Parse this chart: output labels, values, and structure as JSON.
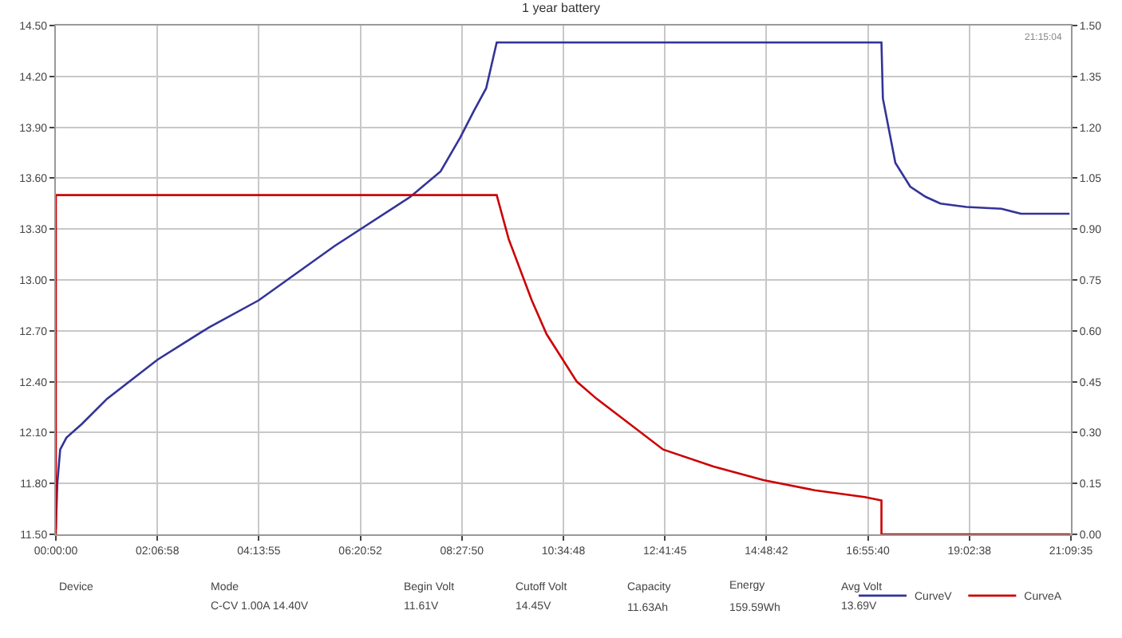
{
  "chart_data": {
    "type": "line",
    "title": "1 year battery",
    "x": [
      0,
      0.03,
      0.09,
      0.22,
      0.54,
      1.07,
      2.12,
      3.19,
      4.23,
      5.81,
      7.39,
      8.02,
      8.43,
      8.72,
      8.97,
      9.19,
      17.21,
      17.24,
      17.5,
      17.81,
      18.13,
      18.44,
      18.98,
      19.71,
      20.12,
      21.13
    ],
    "series": [
      {
        "name": "CurveV",
        "color": "#333399",
        "values": [
          11.53,
          11.8,
          12.0,
          12.07,
          12.15,
          12.3,
          12.53,
          12.72,
          12.88,
          13.2,
          13.49,
          13.64,
          13.84,
          14.0,
          14.13,
          14.4,
          14.4,
          14.07,
          13.69,
          13.55,
          13.49,
          13.45,
          13.43,
          13.42,
          13.39,
          13.39
        ]
      },
      {
        "name": "CurveA",
        "color": "#cc0000",
        "axis": "y2",
        "x": [
          0,
          0,
          9.19,
          9.44,
          9.92,
          10.23,
          10.86,
          11.27,
          12.66,
          13.71,
          14.75,
          15.82,
          16.86,
          17.21,
          17.21,
          21.15
        ],
        "values": [
          0,
          1.0,
          1.0,
          0.87,
          0.69,
          0.59,
          0.45,
          0.4,
          0.25,
          0.2,
          0.16,
          0.13,
          0.11,
          0.1,
          0,
          0
        ]
      }
    ],
    "xlim": [
      0,
      21.15972
    ],
    "xticks": [
      {
        "value": 0,
        "label": "00:00:00"
      },
      {
        "value": 2.11611,
        "label": "02:06:58"
      },
      {
        "value": 4.23194,
        "label": "04:13:55"
      },
      {
        "value": 6.34778,
        "label": "06:20:52"
      },
      {
        "value": 8.46389,
        "label": "08:27:50"
      },
      {
        "value": 10.58,
        "label": "10:34:48"
      },
      {
        "value": 12.69583,
        "label": "12:41:45"
      },
      {
        "value": 14.81167,
        "label": "14:48:42"
      },
      {
        "value": 16.92778,
        "label": "16:55:40"
      },
      {
        "value": 19.04389,
        "label": "19:02:38"
      },
      {
        "value": 21.15972,
        "label": "21:09:35"
      }
    ],
    "ylim": [
      11.5,
      14.5
    ],
    "yticks": [
      {
        "value": 11.5,
        "label": "11.50"
      },
      {
        "value": 11.8,
        "label": "11.80"
      },
      {
        "value": 12.1,
        "label": "12.10"
      },
      {
        "value": 12.4,
        "label": "12.40"
      },
      {
        "value": 12.7,
        "label": "12.70"
      },
      {
        "value": 13.0,
        "label": "13.00"
      },
      {
        "value": 13.3,
        "label": "13.30"
      },
      {
        "value": 13.6,
        "label": "13.60"
      },
      {
        "value": 13.9,
        "label": "13.90"
      },
      {
        "value": 14.2,
        "label": "14.20"
      },
      {
        "value": 14.5,
        "label": "14.50"
      }
    ],
    "y2lim": [
      0,
      1.5
    ],
    "y2ticks": [
      {
        "value": 0,
        "label": "0.00"
      },
      0.15,
      {
        "value": 0.3,
        "label": "0.30"
      },
      0.45,
      {
        "value": 0.6,
        "label": "0.60"
      },
      0.75,
      {
        "value": 0.9,
        "label": "0.90"
      },
      1.05,
      {
        "value": 1.2,
        "label": "1.20"
      },
      1.35,
      {
        "value": 1.5,
        "label": "1.50"
      }
    ],
    "grid": true,
    "legend": "bottom right",
    "marker": "none",
    "line_style": "solid",
    "annotations": [
      "21:15:04",
      "Device",
      "Mode",
      "Begin Volt",
      "Cutoff Volt",
      "Capacity",
      "Energy",
      "Avg Volt",
      "C-CV 1.00A 14.40V",
      "11.61V",
      "14.45V",
      "11.63Ah",
      "159.59Wh",
      "13.69V"
    ]
  }
}
